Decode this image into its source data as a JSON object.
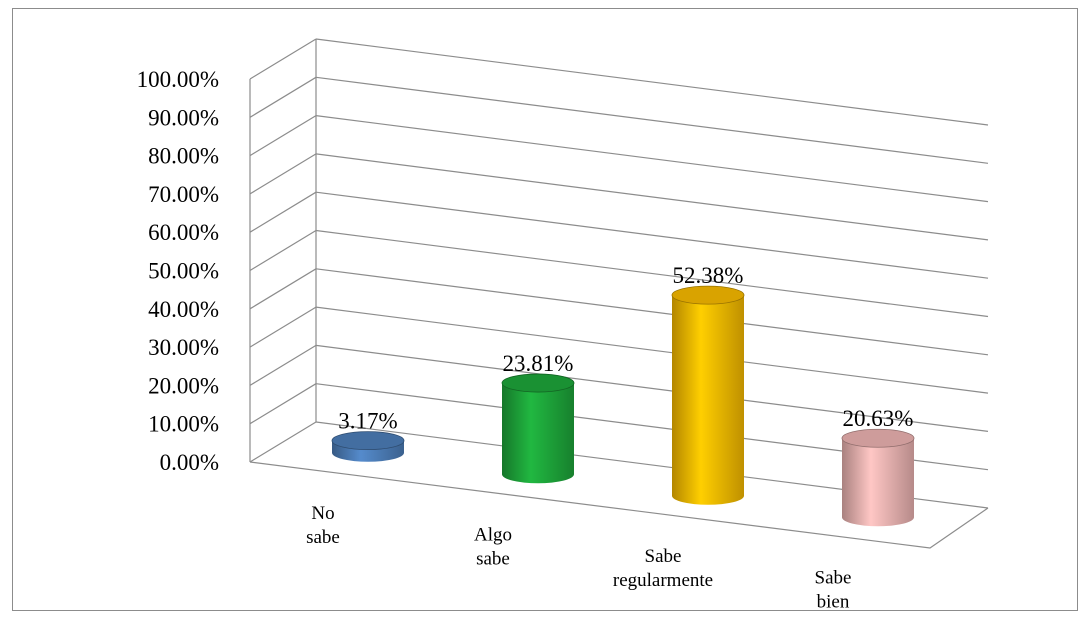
{
  "chart_data": {
    "type": "bar",
    "style": "3d-cylinder",
    "categories": [
      "No sabe",
      "Algo sabe",
      "Sabe regularmente",
      "Sabe bien"
    ],
    "category_lines": [
      [
        "No",
        "sabe"
      ],
      [
        "Algo",
        "sabe"
      ],
      [
        "Sabe",
        "regularmente"
      ],
      [
        "Sabe",
        "bien"
      ]
    ],
    "values": [
      3.17,
      23.81,
      52.38,
      20.63
    ],
    "data_labels": [
      "3.17%",
      "23.81%",
      "52.38%",
      "20.63%"
    ],
    "colors": [
      "#4f81bd",
      "#1faa3c",
      "#ffc000",
      "#f2b8b6"
    ],
    "ylim": [
      0,
      100
    ],
    "yticks": [
      0,
      10,
      20,
      30,
      40,
      50,
      60,
      70,
      80,
      90,
      100
    ],
    "ytick_labels": [
      "0.00%",
      "10.00%",
      "20.00%",
      "30.00%",
      "40.00%",
      "50.00%",
      "60.00%",
      "70.00%",
      "80.00%",
      "90.00%",
      "100.00%"
    ],
    "title": "",
    "xlabel": "",
    "ylabel": "",
    "grid": true,
    "legend": false
  }
}
